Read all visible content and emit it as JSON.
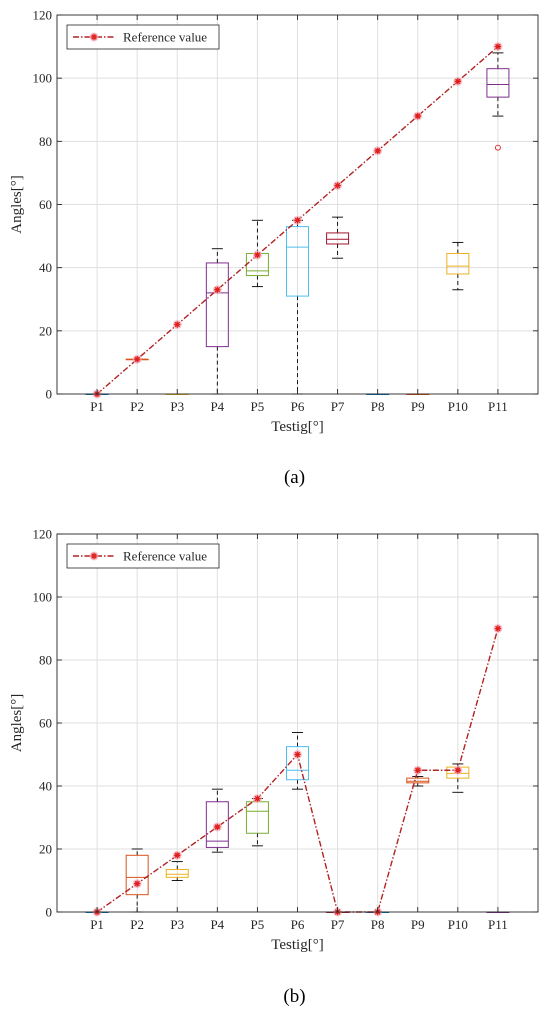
{
  "chart_data": [
    {
      "type": "box",
      "panel_label": "(a)",
      "legend": {
        "label": "Reference value",
        "position": "top-left"
      },
      "xlabel": "Testig[°]",
      "ylabel": "Angles[°]",
      "ylim": [
        0,
        120
      ],
      "yticks": [
        0,
        20,
        40,
        60,
        80,
        100,
        120
      ],
      "grid": true,
      "categories": [
        "P1",
        "P2",
        "P3",
        "P4",
        "P5",
        "P6",
        "P7",
        "P8",
        "P9",
        "P10",
        "P11"
      ],
      "reference_values": [
        0,
        11,
        22,
        33,
        44,
        55,
        66,
        77,
        88,
        99,
        110
      ],
      "boxes": [
        {
          "category": "P1",
          "min": 0,
          "q1": 0,
          "median": 0,
          "q3": 0,
          "max": 0,
          "color": "#0072BD",
          "outliers": []
        },
        {
          "category": "P2",
          "min": 11,
          "q1": 11,
          "median": 11,
          "q3": 11,
          "max": 11,
          "color": "#D95319",
          "outliers": []
        },
        {
          "category": "P3",
          "min": 0,
          "q1": 0,
          "median": 0,
          "q3": 0,
          "max": 0,
          "color": "#EDB120",
          "outliers": []
        },
        {
          "category": "P4",
          "min": 0,
          "q1": 15,
          "median": 32,
          "q3": 41.5,
          "max": 46,
          "color": "#7E2F8E",
          "outliers": []
        },
        {
          "category": "P5",
          "min": 34,
          "q1": 37.5,
          "median": 39,
          "q3": 44.5,
          "max": 55,
          "color": "#77AC30",
          "outliers": []
        },
        {
          "category": "P6",
          "min": 0,
          "q1": 31,
          "median": 46.5,
          "q3": 53,
          "max": 55,
          "color": "#4DBEEE",
          "outliers": []
        },
        {
          "category": "P7",
          "min": 43,
          "q1": 47.5,
          "median": 49,
          "q3": 51,
          "max": 56,
          "color": "#A2142F",
          "outliers": []
        },
        {
          "category": "P8",
          "min": 0,
          "q1": 0,
          "median": 0,
          "q3": 0,
          "max": 0,
          "color": "#0072BD",
          "outliers": []
        },
        {
          "category": "P9",
          "min": 0,
          "q1": 0,
          "median": 0,
          "q3": 0,
          "max": 0,
          "color": "#D95319",
          "outliers": []
        },
        {
          "category": "P10",
          "min": 33,
          "q1": 38,
          "median": 40.5,
          "q3": 44.5,
          "max": 48,
          "color": "#EDB120",
          "outliers": []
        },
        {
          "category": "P11",
          "min": 88,
          "q1": 94,
          "median": 98,
          "q3": 103,
          "max": 108,
          "color": "#7E2F8E",
          "outliers": [
            78
          ]
        }
      ]
    },
    {
      "type": "box",
      "panel_label": "(b)",
      "legend": {
        "label": "Reference value",
        "position": "top-left"
      },
      "xlabel": "Testig[°]",
      "ylabel": "Angles[°]",
      "ylim": [
        0,
        120
      ],
      "yticks": [
        0,
        20,
        40,
        60,
        80,
        100,
        120
      ],
      "grid": true,
      "categories": [
        "P1",
        "P2",
        "P3",
        "P4",
        "P5",
        "P6",
        "P7",
        "P8",
        "P9",
        "P10",
        "P11"
      ],
      "reference_values": [
        0,
        9,
        18,
        27,
        36,
        50,
        0,
        0,
        45,
        45,
        90
      ],
      "boxes": [
        {
          "category": "P1",
          "min": 0,
          "q1": 0,
          "median": 0,
          "q3": 0,
          "max": 0,
          "color": "#0072BD",
          "outliers": []
        },
        {
          "category": "P2",
          "min": 0,
          "q1": 5.5,
          "median": 11,
          "q3": 18,
          "max": 20,
          "color": "#D95319",
          "outliers": []
        },
        {
          "category": "P3",
          "min": 10,
          "q1": 11,
          "median": 12,
          "q3": 13.5,
          "max": 16,
          "color": "#EDB120",
          "outliers": []
        },
        {
          "category": "P4",
          "min": 19,
          "q1": 20.5,
          "median": 22.5,
          "q3": 35,
          "max": 39,
          "color": "#7E2F8E",
          "outliers": []
        },
        {
          "category": "P5",
          "min": 21,
          "q1": 25,
          "median": 32,
          "q3": 35,
          "max": 36,
          "color": "#77AC30",
          "outliers": []
        },
        {
          "category": "P6",
          "min": 39,
          "q1": 42,
          "median": 45,
          "q3": 52.5,
          "max": 57,
          "color": "#4DBEEE",
          "outliers": []
        },
        {
          "category": "P7",
          "min": 0,
          "q1": 0,
          "median": 0,
          "q3": 0,
          "max": 0,
          "color": "#A2142F",
          "outliers": []
        },
        {
          "category": "P8",
          "min": 0,
          "q1": 0,
          "median": 0,
          "q3": 0,
          "max": 0,
          "color": "#0072BD",
          "outliers": []
        },
        {
          "category": "P9",
          "min": 40,
          "q1": 41,
          "median": 41.5,
          "q3": 42.5,
          "max": 43,
          "color": "#D95319",
          "outliers": []
        },
        {
          "category": "P10",
          "min": 38,
          "q1": 42.5,
          "median": 44,
          "q3": 46,
          "max": 47,
          "color": "#EDB120",
          "outliers": []
        },
        {
          "category": "P11",
          "min": 0,
          "q1": 0,
          "median": 0,
          "q3": 0,
          "max": 0,
          "color": "#7E2F8E",
          "outliers": []
        }
      ]
    }
  ],
  "colors": {
    "reference_line": "#B22222",
    "reference_marker": "#E0201B",
    "grid": "#DFDFDF",
    "axis": "#262626"
  }
}
